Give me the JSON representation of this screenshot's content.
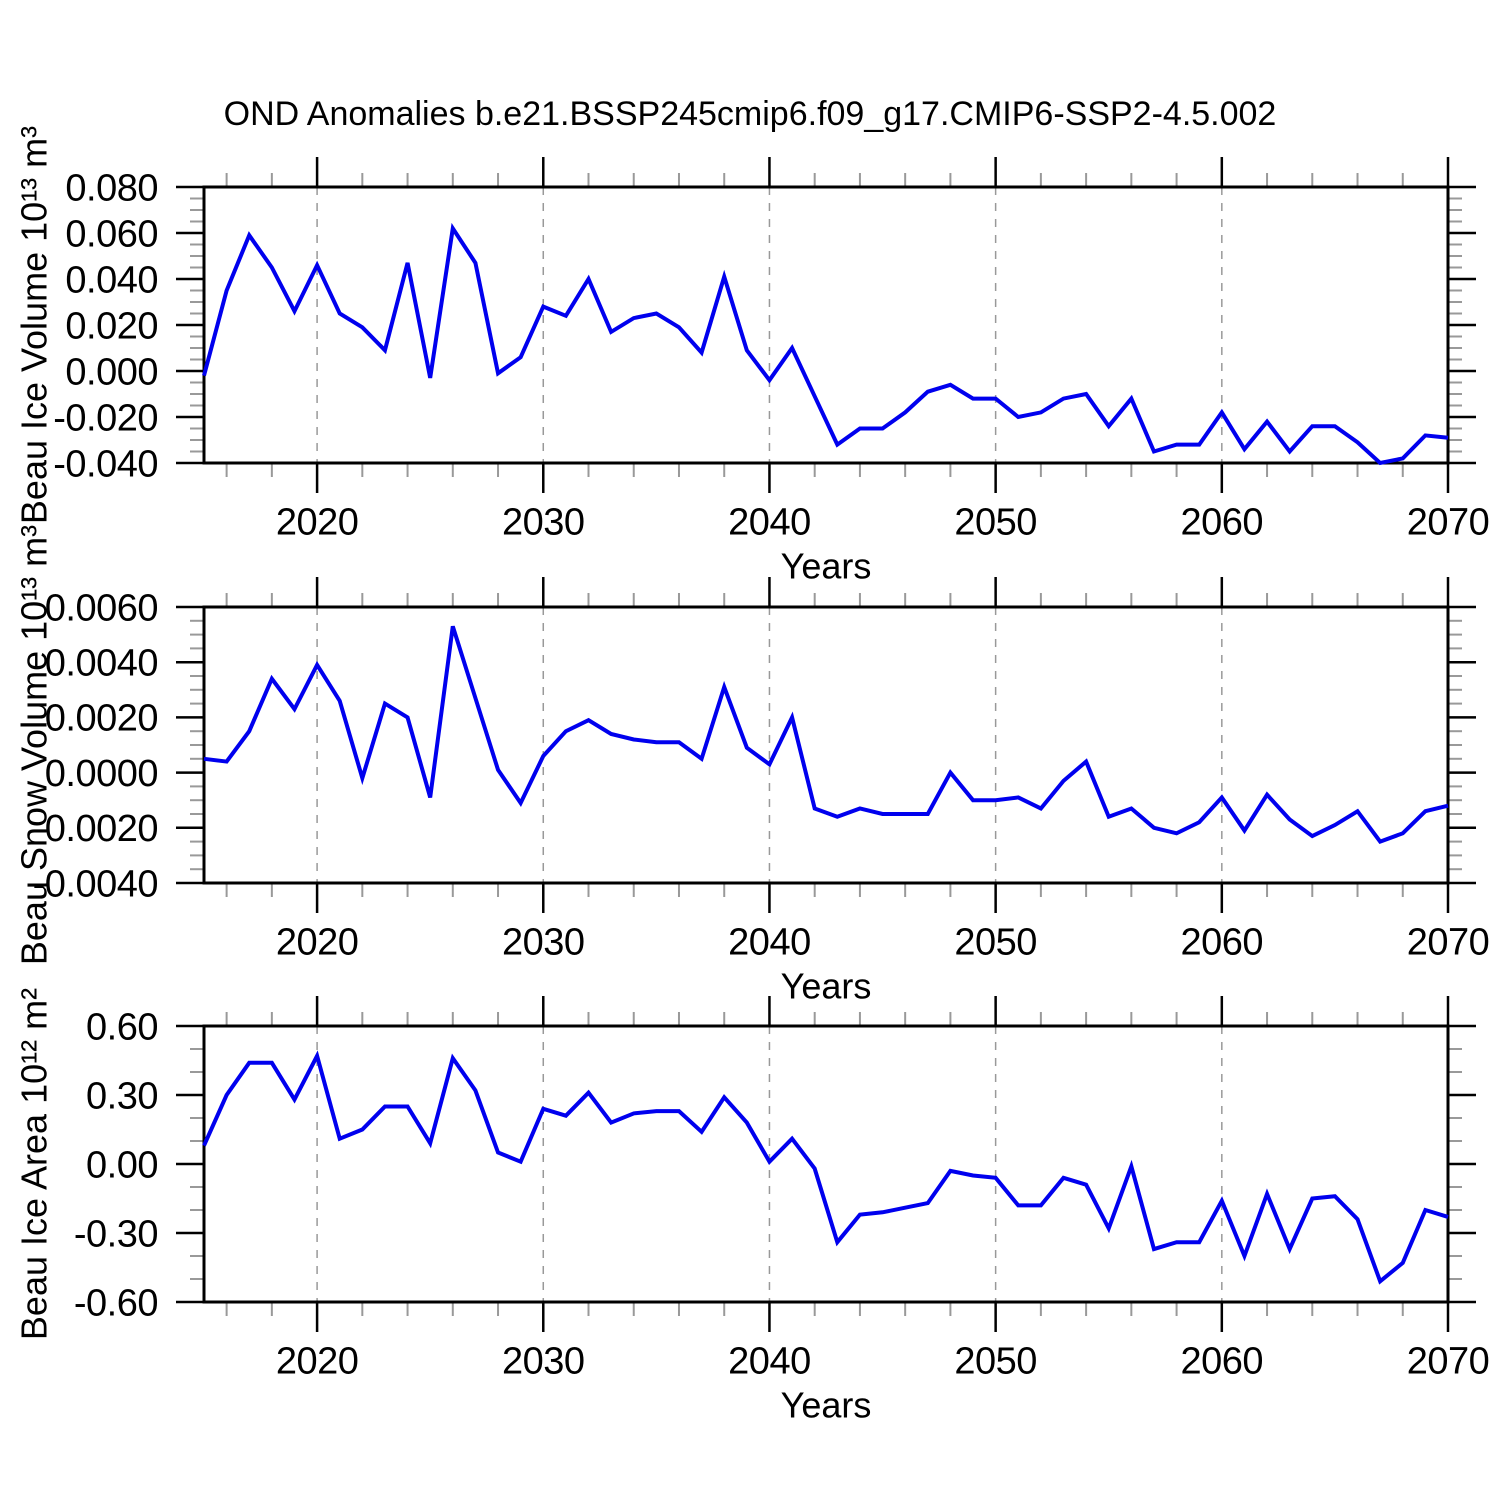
{
  "title": "OND Anomalies b.e21.BSSP245cmip6.f09_g17.CMIP6-SSP2-4.5.002",
  "style": {
    "background": "#ffffff",
    "line_color": "#0000ee",
    "grid_color": "#999999",
    "frame_color": "#000000",
    "major_tick_color": "#000000",
    "minor_tick_color": "#999999"
  },
  "chart_data": [
    {
      "id": "beau-ice-volume",
      "type": "line",
      "ylabel": "Beau Ice Volume 10¹³ m³",
      "xlabel": "Years",
      "xlim": [
        2015,
        2070
      ],
      "ylim": [
        -0.04,
        0.08
      ],
      "ytick_step": 0.02,
      "yminor_step": 0.005,
      "ytick_decimals": 3,
      "xticks": [
        2020,
        2030,
        2040,
        2050,
        2060,
        2070
      ],
      "xminor_step": 2,
      "grid_x": [
        2020,
        2030,
        2040,
        2050,
        2060
      ],
      "grid_on": true,
      "legend_position": "none",
      "x": [
        2015,
        2016,
        2017,
        2018,
        2019,
        2020,
        2021,
        2022,
        2023,
        2024,
        2025,
        2026,
        2027,
        2028,
        2029,
        2030,
        2031,
        2032,
        2033,
        2034,
        2035,
        2036,
        2037,
        2038,
        2039,
        2040,
        2041,
        2042,
        2043,
        2044,
        2045,
        2046,
        2047,
        2048,
        2049,
        2050,
        2051,
        2052,
        2053,
        2054,
        2055,
        2056,
        2057,
        2058,
        2059,
        2060,
        2061,
        2062,
        2063,
        2064,
        2065,
        2066,
        2067,
        2068,
        2069,
        2070
      ],
      "values": [
        -0.002,
        0.035,
        0.059,
        0.045,
        0.026,
        0.046,
        0.025,
        0.019,
        0.009,
        0.047,
        -0.003,
        0.062,
        0.047,
        -0.001,
        0.006,
        0.028,
        0.024,
        0.04,
        0.017,
        0.023,
        0.025,
        0.019,
        0.008,
        0.041,
        0.009,
        -0.004,
        0.01,
        -0.011,
        -0.032,
        -0.025,
        -0.025,
        -0.018,
        -0.009,
        -0.006,
        -0.012,
        -0.012,
        -0.02,
        -0.018,
        -0.012,
        -0.01,
        -0.024,
        -0.012,
        -0.035,
        -0.032,
        -0.032,
        -0.018,
        -0.034,
        -0.022,
        -0.035,
        -0.024,
        -0.024,
        -0.031,
        -0.04,
        -0.038,
        -0.028,
        -0.029
      ]
    },
    {
      "id": "beau-snow-volume",
      "type": "line",
      "ylabel": "Beau Snow Volume 10¹³ m³",
      "xlabel": "Years",
      "xlim": [
        2015,
        2070
      ],
      "ylim": [
        -0.004,
        0.006
      ],
      "ytick_step": 0.002,
      "yminor_step": 0.0005,
      "ytick_decimals": 4,
      "xticks": [
        2020,
        2030,
        2040,
        2050,
        2060,
        2070
      ],
      "xminor_step": 2,
      "grid_x": [
        2020,
        2030,
        2040,
        2050,
        2060
      ],
      "grid_on": true,
      "legend_position": "none",
      "x": [
        2015,
        2016,
        2017,
        2018,
        2019,
        2020,
        2021,
        2022,
        2023,
        2024,
        2025,
        2026,
        2027,
        2028,
        2029,
        2030,
        2031,
        2032,
        2033,
        2034,
        2035,
        2036,
        2037,
        2038,
        2039,
        2040,
        2041,
        2042,
        2043,
        2044,
        2045,
        2046,
        2047,
        2048,
        2049,
        2050,
        2051,
        2052,
        2053,
        2054,
        2055,
        2056,
        2057,
        2058,
        2059,
        2060,
        2061,
        2062,
        2063,
        2064,
        2065,
        2066,
        2067,
        2068,
        2069,
        2070
      ],
      "values": [
        0.0005,
        0.0004,
        0.0015,
        0.0034,
        0.0023,
        0.0039,
        0.0026,
        -0.0002,
        0.0025,
        0.002,
        -0.0009,
        0.0053,
        0.0027,
        0.0001,
        -0.0011,
        0.0006,
        0.0015,
        0.0019,
        0.0014,
        0.0012,
        0.0011,
        0.0011,
        0.0005,
        0.0031,
        0.0009,
        0.0003,
        0.002,
        -0.0013,
        -0.0016,
        -0.0013,
        -0.0015,
        -0.0015,
        -0.0015,
        0.0,
        -0.001,
        -0.001,
        -0.0009,
        -0.0013,
        -0.0003,
        0.0004,
        -0.0016,
        -0.0013,
        -0.002,
        -0.0022,
        -0.0018,
        -0.0009,
        -0.0021,
        -0.0008,
        -0.0017,
        -0.0023,
        -0.0019,
        -0.0014,
        -0.0025,
        -0.0022,
        -0.0014,
        -0.0012
      ]
    },
    {
      "id": "beau-ice-area",
      "type": "line",
      "ylabel": "Beau Ice Area 10¹² m²",
      "xlabel": "Years",
      "xlim": [
        2015,
        2070
      ],
      "ylim": [
        -0.6,
        0.6
      ],
      "ytick_step": 0.3,
      "yminor_step": 0.1,
      "ytick_decimals": 2,
      "xticks": [
        2020,
        2030,
        2040,
        2050,
        2060,
        2070
      ],
      "xminor_step": 2,
      "grid_x": [
        2020,
        2030,
        2040,
        2050,
        2060
      ],
      "grid_on": true,
      "legend_position": "none",
      "x": [
        2015,
        2016,
        2017,
        2018,
        2019,
        2020,
        2021,
        2022,
        2023,
        2024,
        2025,
        2026,
        2027,
        2028,
        2029,
        2030,
        2031,
        2032,
        2033,
        2034,
        2035,
        2036,
        2037,
        2038,
        2039,
        2040,
        2041,
        2042,
        2043,
        2044,
        2045,
        2046,
        2047,
        2048,
        2049,
        2050,
        2051,
        2052,
        2053,
        2054,
        2055,
        2056,
        2057,
        2058,
        2059,
        2060,
        2061,
        2062,
        2063,
        2064,
        2065,
        2066,
        2067,
        2068,
        2069,
        2070
      ],
      "values": [
        0.08,
        0.3,
        0.44,
        0.44,
        0.28,
        0.47,
        0.11,
        0.15,
        0.25,
        0.25,
        0.09,
        0.46,
        0.32,
        0.05,
        0.01,
        0.24,
        0.21,
        0.31,
        0.18,
        0.22,
        0.23,
        0.23,
        0.14,
        0.29,
        0.18,
        0.01,
        0.11,
        -0.02,
        -0.34,
        -0.22,
        -0.21,
        -0.19,
        -0.17,
        -0.03,
        -0.05,
        -0.06,
        -0.18,
        -0.18,
        -0.06,
        -0.09,
        -0.28,
        -0.01,
        -0.37,
        -0.34,
        -0.34,
        -0.16,
        -0.4,
        -0.13,
        -0.37,
        -0.15,
        -0.14,
        -0.24,
        -0.51,
        -0.43,
        -0.2,
        -0.23
      ]
    }
  ]
}
